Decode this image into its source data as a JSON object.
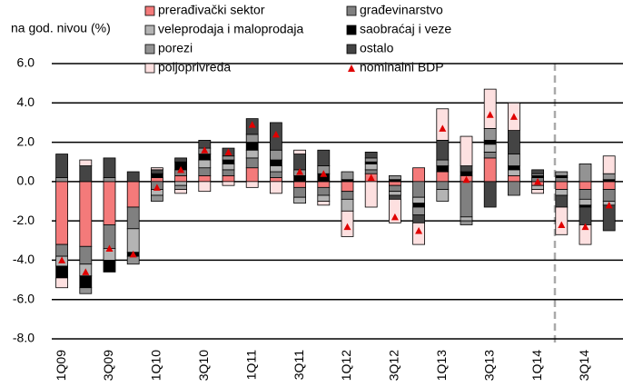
{
  "chart_data": {
    "type": "bar",
    "stacked": true,
    "ylabel": "na god. nivou (%)",
    "categories": [
      "1Q09",
      null,
      "3Q09",
      null,
      "1Q10",
      null,
      "3Q10",
      null,
      "1Q11",
      null,
      "3Q11",
      null,
      "1Q12",
      null,
      "3Q12",
      null,
      "1Q13",
      null,
      "3Q13",
      null,
      "1Q14",
      null,
      "3Q14",
      null
    ],
    "series": [
      {
        "name": "prerađivački sektor",
        "color": "#f47a7a",
        "values": [
          -3.2,
          -3.3,
          -2.2,
          -1.3,
          0.2,
          0.3,
          0.3,
          0.3,
          0.7,
          0.2,
          -0.3,
          -0.3,
          -0.5,
          0.4,
          -0.2,
          0.7,
          0.5,
          0.3,
          1.2,
          0.3,
          -0.2,
          -0.4,
          -0.4,
          -0.4
        ]
      },
      {
        "name": "građevinarstvo",
        "color": "#808080",
        "values": [
          -0.6,
          -0.9,
          -1.2,
          -1.1,
          -0.4,
          0.3,
          0.4,
          0.3,
          0.5,
          0.3,
          -0.5,
          -0.4,
          -0.4,
          0.2,
          -0.3,
          -0.8,
          -0.4,
          -1.8,
          0.3,
          -0.7,
          0.2,
          0.2,
          -0.5,
          -0.6
        ]
      },
      {
        "name": "veleprodaja i maloprodaja",
        "color": "#b4b4b4",
        "values": [
          -0.5,
          -0.6,
          -0.6,
          -1.2,
          -0.3,
          -0.2,
          0.4,
          0.3,
          0.4,
          0.3,
          -0.3,
          -0.3,
          -0.6,
          0.3,
          -0.2,
          -0.3,
          -0.6,
          -0.2,
          0.4,
          0.3,
          -0.2,
          -0.3,
          -0.3,
          -0.2
        ]
      },
      {
        "name": "saobraćaj i veze",
        "color": "#000000",
        "values": [
          -0.6,
          -0.6,
          -0.6,
          -0.2,
          0.2,
          0.4,
          0.3,
          0.2,
          0.4,
          0.3,
          0.3,
          0.4,
          0.1,
          0.1,
          0.1,
          -0.2,
          0.3,
          0.2,
          0.2,
          0.2,
          0.1,
          0.1,
          -0.1,
          0.1
        ]
      },
      {
        "name": "porezi",
        "color": "#939393",
        "values": [
          0.2,
          -0.3,
          0.2,
          -0.4,
          -0.3,
          -0.2,
          0.3,
          0.2,
          0.4,
          0.5,
          0.3,
          0.4,
          0.4,
          0.2,
          0.2,
          -0.4,
          0.3,
          -0.2,
          0.6,
          0.6,
          0.1,
          0.2,
          0.9,
          0.3
        ]
      },
      {
        "name": "ostalo",
        "color": "#444444",
        "values": [
          1.2,
          0.8,
          1.0,
          0.5,
          0.2,
          0.2,
          0.4,
          0.4,
          0.8,
          1.4,
          0.8,
          0.8,
          0,
          0.3,
          -0.2,
          -0.4,
          1.0,
          0.3,
          -1.3,
          1.2,
          0.2,
          -0.6,
          -0.9,
          -1.3
        ]
      },
      {
        "name": "poljoprivreda",
        "color": "#fde0e0",
        "values": [
          -0.5,
          0.3,
          0,
          0,
          0.1,
          -0.2,
          -0.5,
          -0.2,
          -0.3,
          -0.6,
          0.2,
          -0.2,
          -1.3,
          -1.3,
          -1.2,
          -1.1,
          1.6,
          1.5,
          2.0,
          1.4,
          -0.2,
          -1.4,
          -1.0,
          0.9
        ]
      }
    ],
    "line_series": {
      "name": "nominalni BDP",
      "color": "#e00000",
      "marker": "triangle",
      "values": [
        -4.0,
        -4.6,
        -3.4,
        -3.7,
        -0.3,
        0.6,
        1.6,
        1.5,
        2.9,
        2.4,
        0.5,
        0.4,
        -2.3,
        0.2,
        -1.8,
        -2.5,
        2.7,
        0.1,
        3.4,
        3.3,
        0,
        -2.2,
        -2.3,
        -1.2
      ]
    },
    "ylim": [
      -8,
      6
    ],
    "yticks": [
      {
        "value": -8,
        "label": "-8.0"
      },
      {
        "value": -6,
        "label": "-6.0"
      },
      {
        "value": -4,
        "label": "-4.0"
      },
      {
        "value": -2,
        "label": "-2.0"
      },
      {
        "value": 0,
        "label": "0.0"
      },
      {
        "value": 2,
        "label": "2.0"
      },
      {
        "value": 4,
        "label": "4.0"
      },
      {
        "value": 6,
        "label": "6.0"
      }
    ],
    "grid": true
  }
}
